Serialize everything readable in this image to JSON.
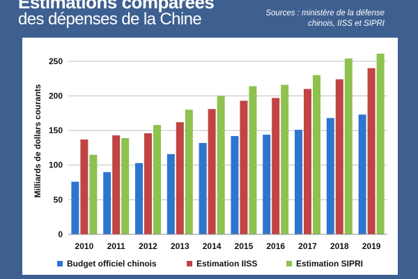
{
  "header": {
    "title_line1": "Estimations comparées",
    "title_line2": "des dépenses de la Chine",
    "sources_line1": "Sources : ministère de la défense",
    "sources_line2": "chinois, IISS et SIPRI"
  },
  "colors": {
    "background": "#3e6090",
    "panel": "#ffffff"
  },
  "chart_data": {
    "type": "bar",
    "categories": [
      "2010",
      "2011",
      "2012",
      "2013",
      "2014",
      "2015",
      "2016",
      "2017",
      "2018",
      "2019"
    ],
    "series": [
      {
        "name": "Budget officiel chinois",
        "color": "#2e75d0",
        "values": [
          76,
          90,
          103,
          116,
          132,
          142,
          144,
          151,
          168,
          173
        ]
      },
      {
        "name": "Estimation IISS",
        "color": "#c24343",
        "values": [
          137,
          143,
          146,
          162,
          181,
          193,
          197,
          210,
          224,
          240
        ]
      },
      {
        "name": "Estimation SIPRI",
        "color": "#8dc24f",
        "values": [
          115,
          139,
          158,
          180,
          200,
          214,
          216,
          230,
          254,
          261
        ]
      }
    ],
    "ylabel": "Milliards de dollars courants",
    "xlabel": "",
    "ylim": [
      0,
      270
    ],
    "yticks": [
      0,
      50,
      100,
      150,
      200,
      250
    ],
    "grid": true,
    "legend_position": "bottom"
  }
}
